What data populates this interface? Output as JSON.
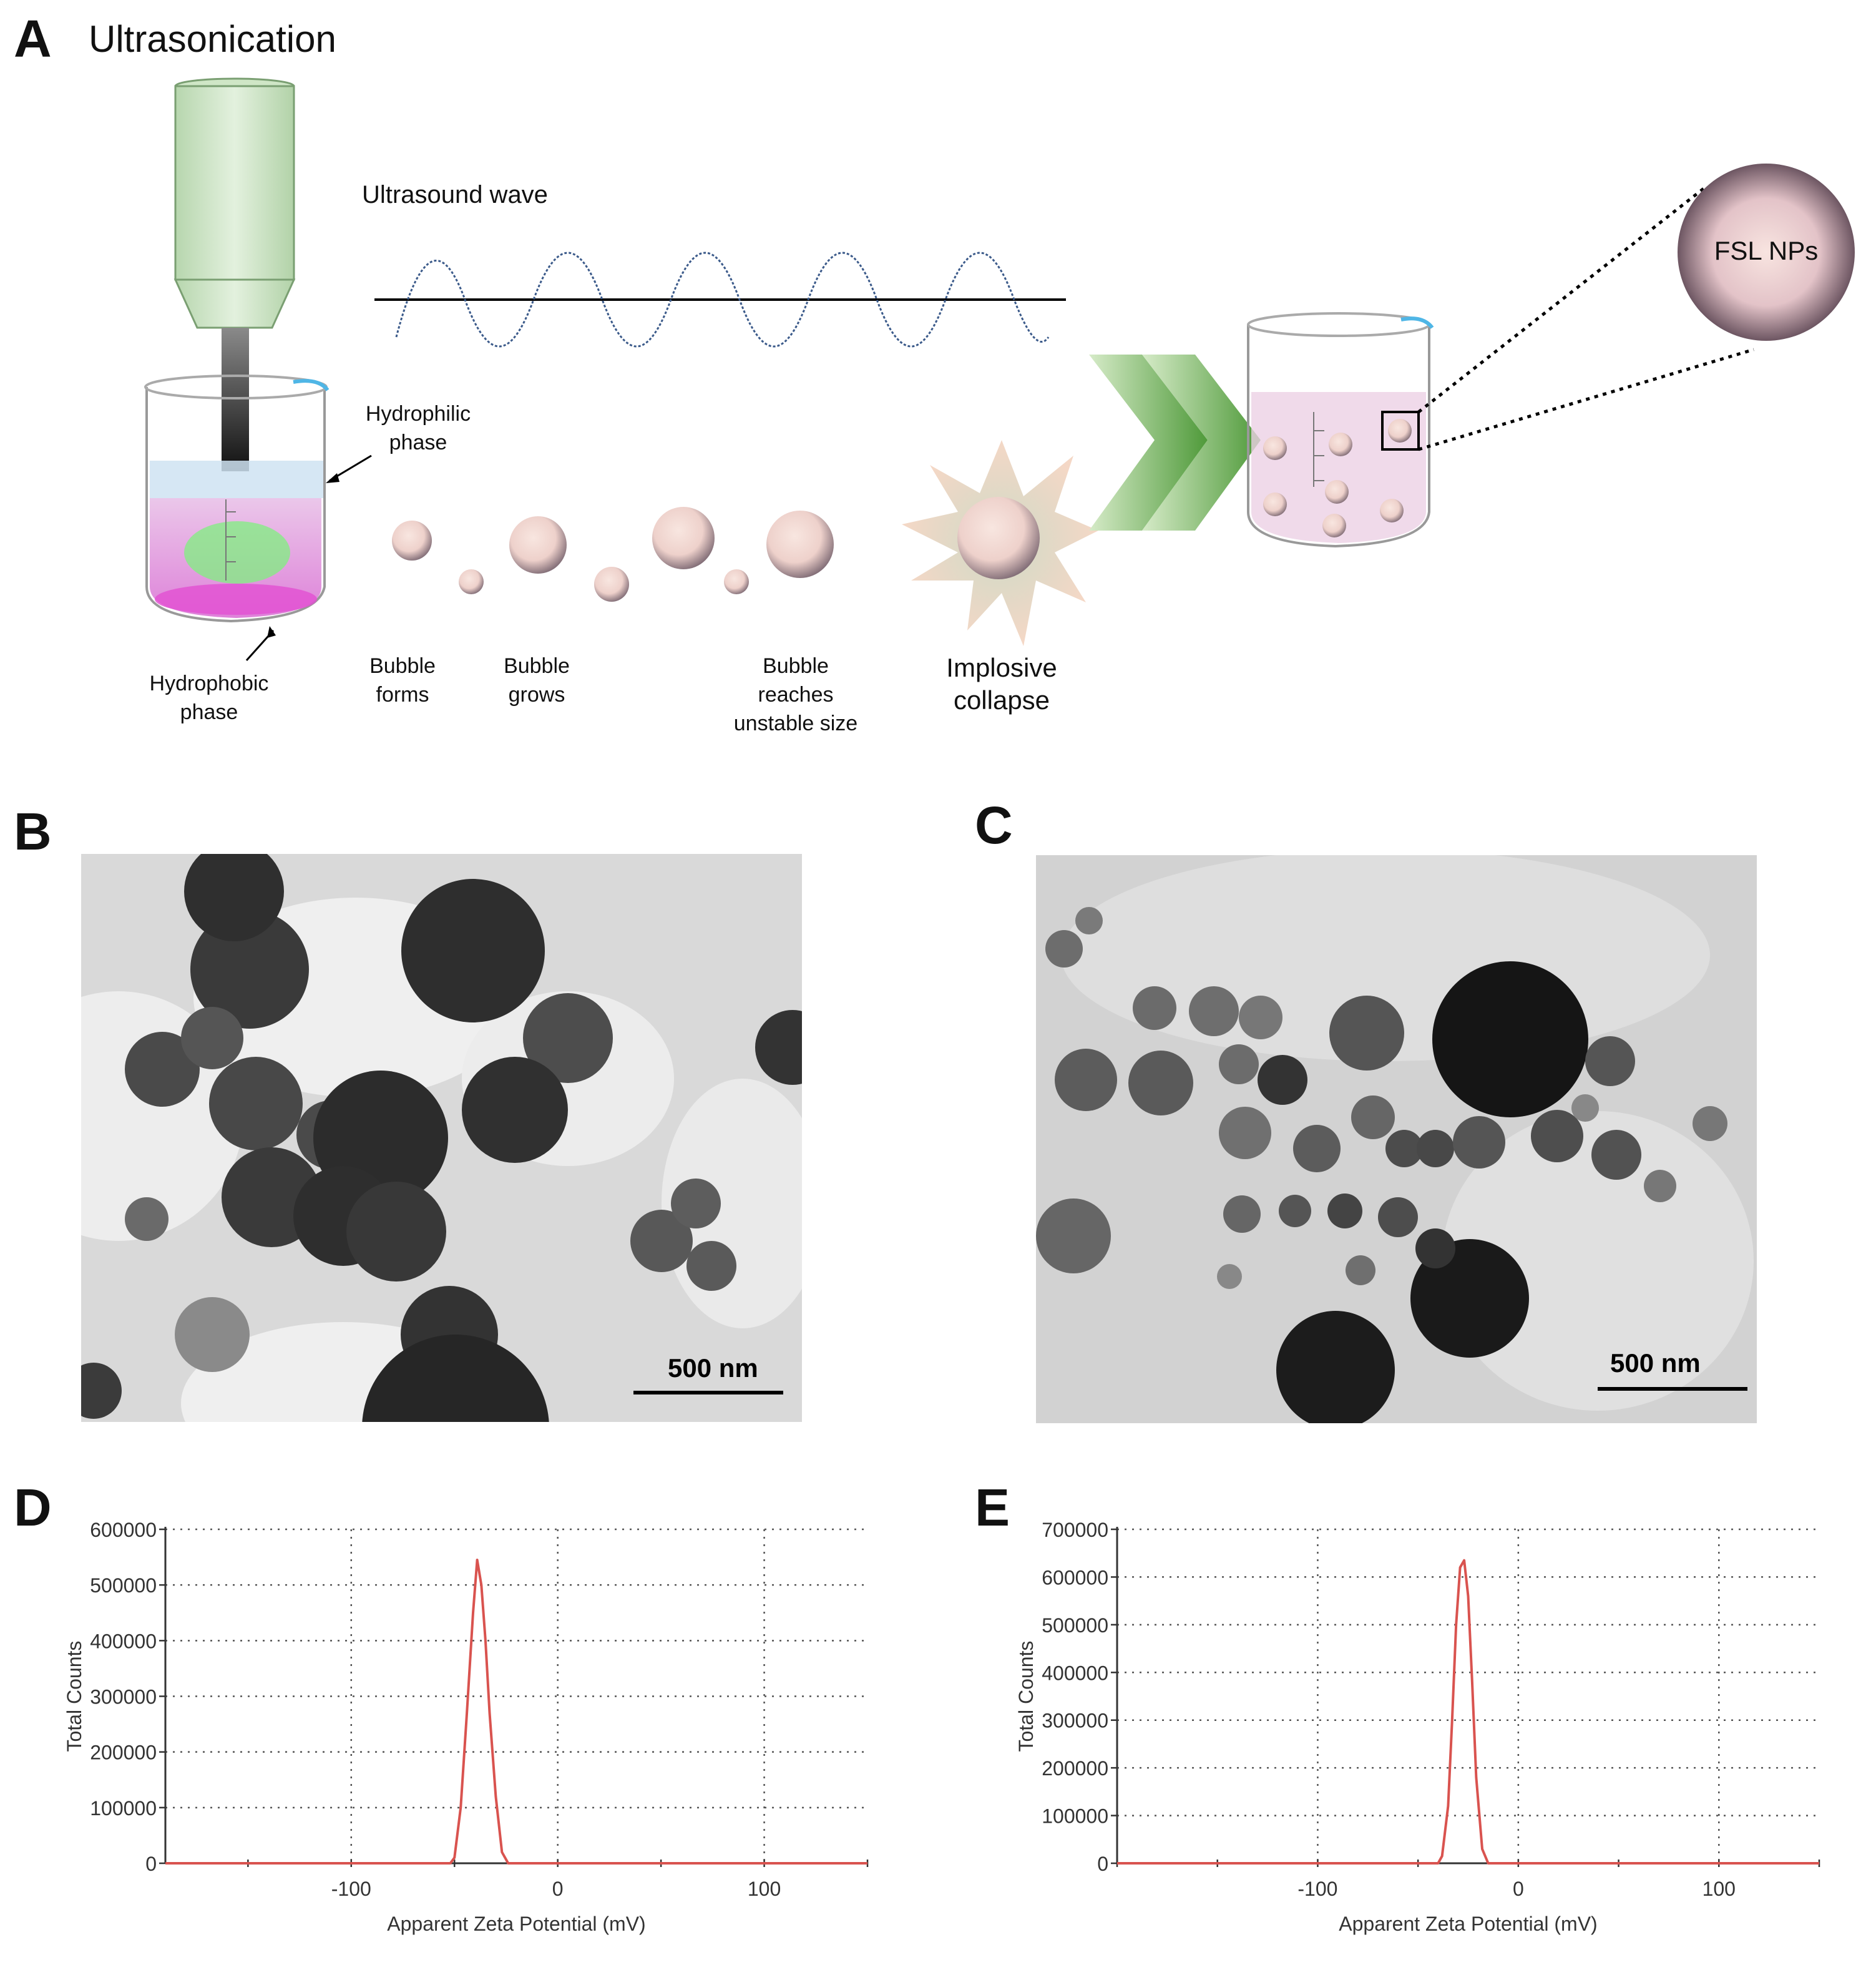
{
  "panels": {
    "A": {
      "letter": "A",
      "title": "Ultrasonication",
      "wave_label": "Ultrasound wave",
      "hydrophilic_label": "Hydrophilic\nphase",
      "hydrophobic_label": "Hydrophobic\nphase",
      "stages": [
        {
          "label": "Bubble\nforms"
        },
        {
          "label": "Bubble\ngrows"
        },
        {
          "label": "Bubble\nreaches\nunstable size"
        },
        {
          "label": "Implosive\ncollapse"
        }
      ],
      "product_label": "FSL NPs"
    },
    "B": {
      "letter": "B",
      "scale_label": "500 nm"
    },
    "C": {
      "letter": "C",
      "scale_label": "500 nm"
    },
    "D": {
      "letter": "D"
    },
    "E": {
      "letter": "E"
    }
  },
  "colors": {
    "curve": "#d9534f",
    "grid": "#555555",
    "arrow_green": "#4f9a3a",
    "particle": "#f2d9d4",
    "probe": "#cfe5c8"
  },
  "chart_data": [
    {
      "panel": "D",
      "type": "line",
      "xlabel": "Apparent Zeta Potential (mV)",
      "ylabel": "Total Counts",
      "xlim": [
        -190,
        150
      ],
      "ylim": [
        0,
        600000
      ],
      "xticks": [
        -100,
        0,
        100
      ],
      "yticks": [
        0,
        100000,
        200000,
        300000,
        400000,
        500000,
        600000
      ],
      "grid": true,
      "series": [
        {
          "x": [
            -190,
            -52,
            -50,
            -47,
            -44,
            -41,
            -39,
            -37,
            -35,
            -33,
            -30,
            -27,
            -24,
            150
          ],
          "y": [
            0,
            0,
            10000,
            100000,
            270000,
            450000,
            545000,
            500000,
            400000,
            270000,
            120000,
            20000,
            0,
            0
          ]
        }
      ]
    },
    {
      "panel": "E",
      "type": "line",
      "xlabel": "Apparent Zeta Potential (mV)",
      "ylabel": "Total Counts",
      "xlim": [
        -200,
        150
      ],
      "ylim": [
        0,
        700000
      ],
      "xticks": [
        -100,
        0,
        100
      ],
      "yticks": [
        0,
        100000,
        200000,
        300000,
        400000,
        500000,
        600000,
        700000
      ],
      "grid": true,
      "series": [
        {
          "x": [
            -200,
            -40,
            -38,
            -35,
            -33,
            -31,
            -29,
            -27,
            -25,
            -23,
            -21,
            -18,
            -15,
            150
          ],
          "y": [
            0,
            0,
            15000,
            120000,
            300000,
            500000,
            620000,
            635000,
            560000,
            380000,
            180000,
            30000,
            0,
            0
          ]
        }
      ]
    }
  ]
}
